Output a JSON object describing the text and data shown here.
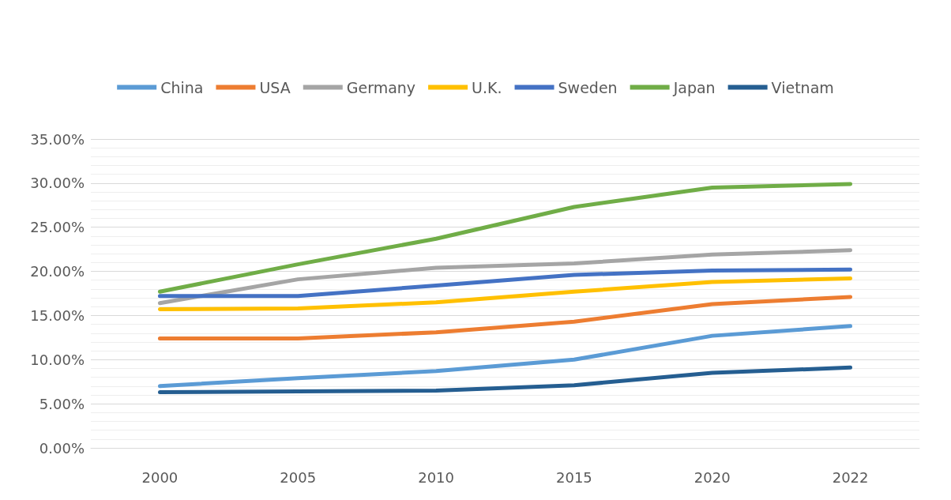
{
  "chart_data": {
    "type": "line",
    "categories": [
      "2000",
      "2005",
      "2010",
      "2015",
      "2020",
      "2022"
    ],
    "series": [
      {
        "name": "China",
        "color": "#5b9bd5",
        "values": [
          7.0,
          7.9,
          8.7,
          10.0,
          12.7,
          13.8
        ]
      },
      {
        "name": "USA",
        "color": "#ed7d31",
        "values": [
          12.4,
          12.4,
          13.1,
          14.3,
          16.3,
          17.1
        ]
      },
      {
        "name": "Germany",
        "color": "#a5a5a5",
        "values": [
          16.4,
          19.1,
          20.4,
          20.9,
          21.9,
          22.4
        ]
      },
      {
        "name": "U.K.",
        "color": "#ffc000",
        "values": [
          15.7,
          15.8,
          16.5,
          17.7,
          18.8,
          19.2
        ]
      },
      {
        "name": "Sweden",
        "color": "#4472c4",
        "values": [
          17.2,
          17.2,
          18.4,
          19.6,
          20.1,
          20.2
        ]
      },
      {
        "name": "Japan",
        "color": "#70ad47",
        "values": [
          17.7,
          20.8,
          23.7,
          27.3,
          29.5,
          29.9
        ]
      },
      {
        "name": "Vietnam",
        "color": "#255e91",
        "values": [
          6.3,
          6.4,
          6.5,
          7.1,
          8.5,
          9.1
        ]
      }
    ],
    "ylim": [
      0,
      35
    ],
    "yticks": [
      {
        "value": 0,
        "label": "0.00%"
      },
      {
        "value": 5,
        "label": "5.00%"
      },
      {
        "value": 10,
        "label": "10.00%"
      },
      {
        "value": 15,
        "label": "15.00%"
      },
      {
        "value": 20,
        "label": "20.00%"
      },
      {
        "value": 25,
        "label": "25.00%"
      },
      {
        "value": 30,
        "label": "30.00%"
      },
      {
        "value": 35,
        "label": "35.00%"
      }
    ],
    "grid": "y",
    "legend": "top",
    "marker": "none",
    "line_style": "solid"
  }
}
